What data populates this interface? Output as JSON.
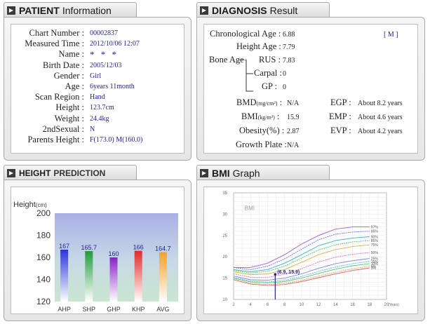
{
  "patient": {
    "tab_bold": "PATIENT",
    "tab_light": "Information",
    "rows": [
      {
        "label": "Chart Number :",
        "value": "00002837"
      },
      {
        "label": "Measured Time :",
        "value": "2012/10/06  12:07"
      },
      {
        "label": "Name :",
        "value": "* * *"
      },
      {
        "label": "Birth Date :",
        "value": "2005/12/03"
      },
      {
        "label": "Gender :",
        "value": "Girl"
      },
      {
        "label": "Age :",
        "value": "6years 11month"
      },
      {
        "label": "Scan Region :",
        "value": "Hand"
      },
      {
        "label": "Height :",
        "value": "123.7cm"
      },
      {
        "label": "Weight :",
        "value": "24.4kg"
      },
      {
        "label": "2ndSexual :",
        "value": "N"
      },
      {
        "label": "Parents Height :",
        "value": "F(173.0)  M(160.0)"
      }
    ]
  },
  "diagnosis": {
    "tab_bold": "DIAGNOSIS",
    "tab_light": "Result",
    "chrono_label": "Chronological Age :",
    "chrono_value": "6.88",
    "marker": "[ M ]",
    "height_age_label": "Height Age :",
    "height_age_value": "7.79",
    "bone_age_label": "Bone Age",
    "rus_label": "RUS :",
    "rus_value": "7.83",
    "carpal_label": "Carpal :",
    "carpal_value": "0",
    "gp_label": "GP :",
    "gp_value": "0",
    "bmd_label": "BMD",
    "bmd_unit": "(mg/cm²)",
    "bmd_value": "N/A",
    "bmi_label": "BMI",
    "bmi_unit": "(kg/m²)",
    "bmi_value": "15.9",
    "obesity_label": "Obesity(%) :",
    "obesity_value": "2.87",
    "growth_plate_label": "Growth Plate :",
    "growth_plate_value": "N/A",
    "egp_label": "EGP :",
    "egp_value": "About 8.2 years",
    "emp_label": "EMP :",
    "emp_value": "About 4.6 years",
    "evp_label": "EVP :",
    "evp_value": "About 4.2 years"
  },
  "height_prediction": {
    "tab_bold": "HEIGHT",
    "tab_light": "PREDICTION"
  },
  "bmi_graph": {
    "tab_bold": "BMI",
    "tab_light": "Graph"
  },
  "chart_data": [
    {
      "type": "bar",
      "ylabel": "Height",
      "yunit": "(cm)",
      "ylim": [
        120,
        200
      ],
      "yticks": [
        120,
        140,
        160,
        180,
        200
      ],
      "categories": [
        "AHP",
        "SHP",
        "GHP",
        "KHP",
        "AVG"
      ],
      "values": [
        167,
        165.7,
        160,
        166,
        164.7
      ],
      "value_labels": [
        "167",
        "165.7",
        "160",
        "166",
        "164.7"
      ],
      "colors": [
        "#2b35d6",
        "#1f9c3c",
        "#8a22c9",
        "#e02a2a",
        "#f2a12a"
      ],
      "grid": false
    },
    {
      "type": "line",
      "title": "BMI",
      "xlim": [
        2,
        20
      ],
      "ylim": [
        10,
        35
      ],
      "xticks": [
        2,
        4,
        6,
        8,
        10,
        12,
        14,
        16,
        18,
        20
      ],
      "yticks": [
        10,
        15,
        20,
        25,
        30,
        35
      ],
      "xunit": "(Years)",
      "grid": true,
      "x": [
        2,
        4,
        6,
        8,
        10,
        12,
        14,
        16,
        18
      ],
      "series": [
        {
          "name": "97%",
          "values": [
            17.5,
            17.5,
            18.5,
            20.5,
            23.0,
            25.0,
            26.5,
            27.0,
            27.0
          ]
        },
        {
          "name": "95%",
          "values": [
            17.5,
            17.0,
            17.8,
            19.5,
            21.8,
            24.0,
            25.3,
            25.8,
            26.0
          ]
        },
        {
          "name": "90%",
          "values": [
            17.0,
            16.5,
            17.0,
            18.5,
            20.5,
            22.6,
            23.8,
            24.4,
            24.7
          ]
        },
        {
          "name": "85%",
          "values": [
            16.8,
            16.2,
            16.6,
            17.8,
            19.7,
            21.6,
            22.8,
            23.5,
            23.8
          ]
        },
        {
          "name": "75%",
          "values": [
            16.5,
            15.8,
            16.0,
            17.0,
            18.7,
            20.5,
            21.7,
            22.4,
            22.8
          ]
        },
        {
          "name": "50%",
          "values": [
            16.0,
            15.2,
            15.2,
            15.9,
            17.2,
            18.8,
            19.9,
            20.6,
            21.0
          ]
        },
        {
          "name": "25%",
          "values": [
            15.5,
            14.6,
            14.5,
            15.0,
            16.0,
            17.3,
            18.4,
            19.1,
            19.6
          ]
        },
        {
          "name": "15%",
          "values": [
            15.2,
            14.3,
            14.1,
            14.5,
            15.4,
            16.6,
            17.6,
            18.4,
            18.9
          ]
        },
        {
          "name": "10%",
          "values": [
            15.0,
            14.1,
            13.9,
            14.2,
            15.0,
            16.1,
            17.1,
            17.9,
            18.4
          ]
        },
        {
          "name": "5%",
          "values": [
            14.8,
            13.8,
            13.5,
            13.8,
            14.5,
            15.5,
            16.4,
            17.2,
            17.8
          ]
        },
        {
          "name": "3%",
          "values": [
            14.6,
            13.6,
            13.3,
            13.5,
            14.2,
            15.1,
            16.0,
            16.8,
            17.4
          ]
        }
      ],
      "series_colors": [
        "#a35bd3",
        "#6d6fd8",
        "#3fb0c8",
        "#5bbf63",
        "#d8b347",
        "#d772b0",
        "#7a86d6",
        "#58b7d6",
        "#62c180",
        "#d9a95a",
        "#d06b6b"
      ],
      "point": {
        "x": 6.9,
        "y": 15.9,
        "label": "(6.9, 15.9)"
      }
    }
  ]
}
